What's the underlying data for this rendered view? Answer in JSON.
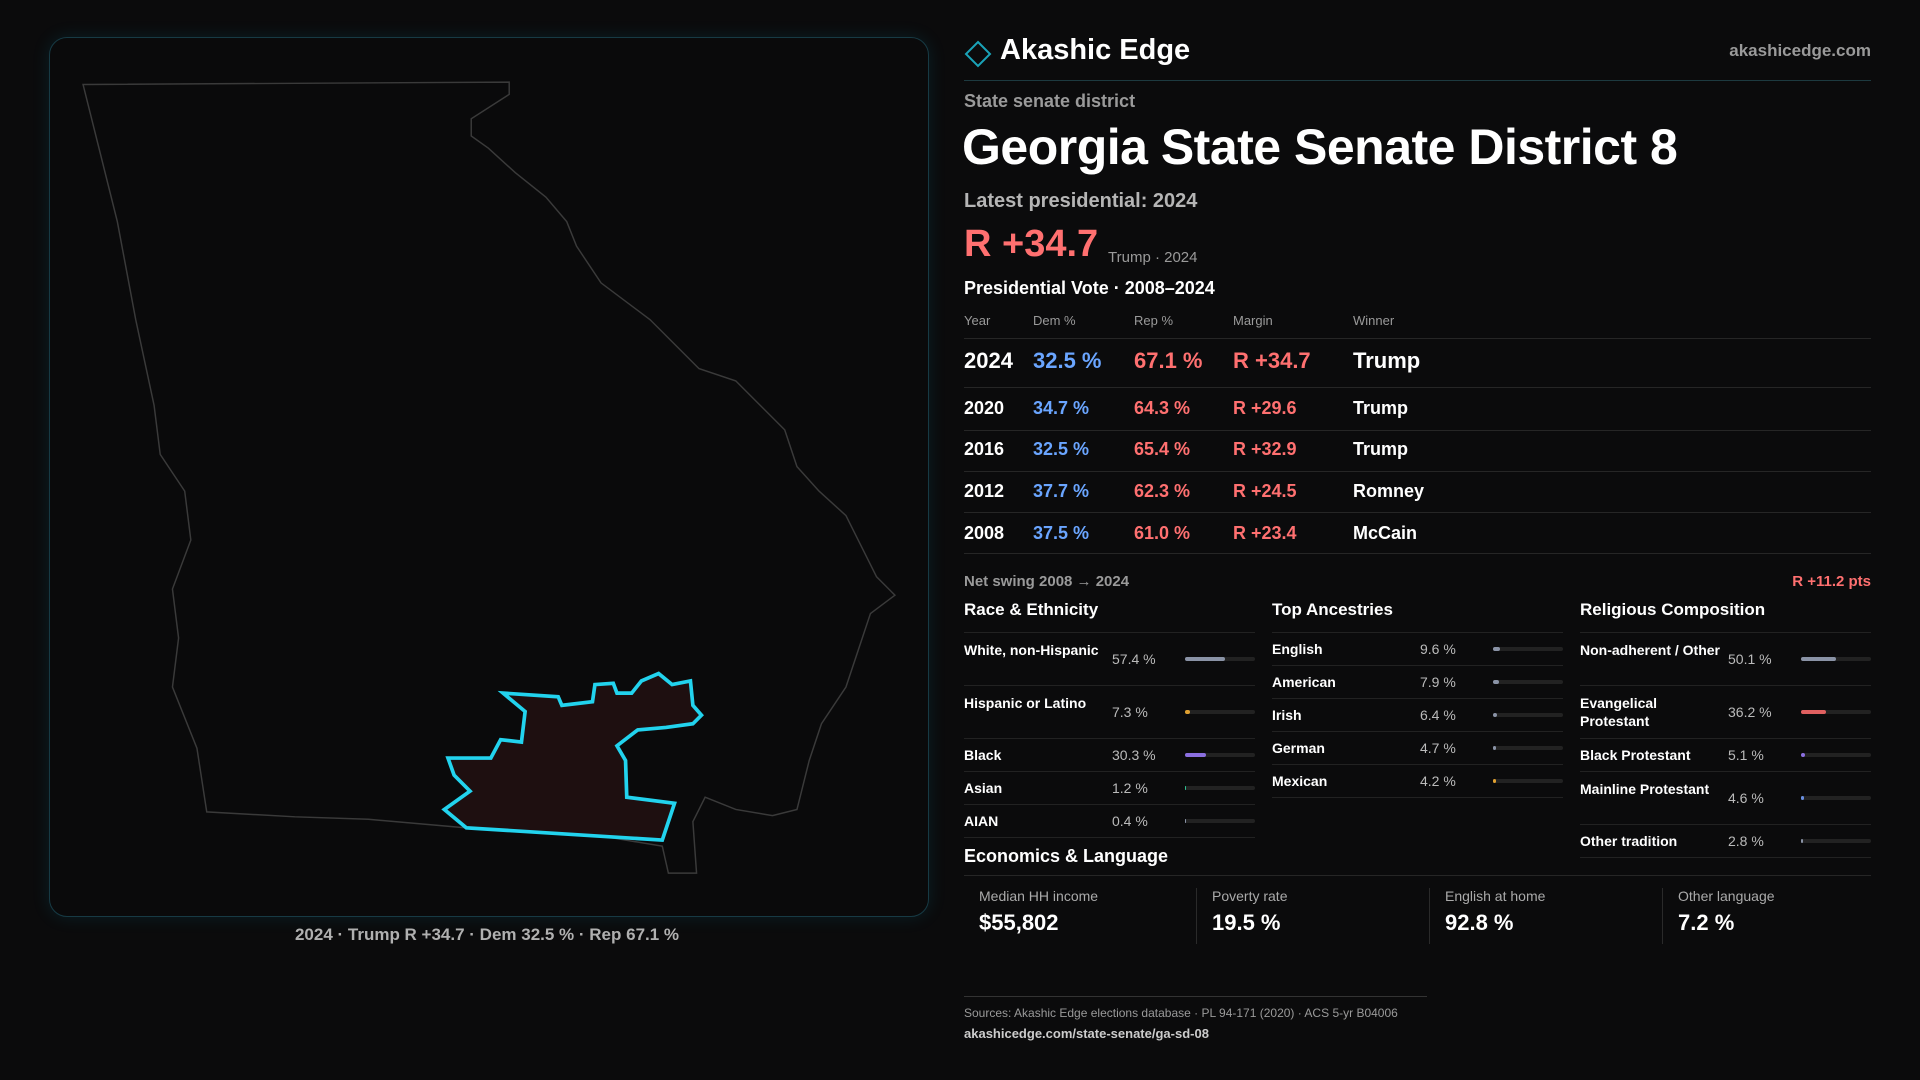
{
  "brand": {
    "name": "Akashic Edge",
    "site": "akashicedge.com"
  },
  "header": {
    "kicker": "State senate district",
    "title": "Georgia State Senate District 8",
    "latest": "Latest presidential: 2024",
    "margin": "R +34.7",
    "margin_note": "Trump · 2024"
  },
  "map": {
    "caption": "2024 · Trump R +34.7 · Dem 32.5 % · Rep 67.1 %"
  },
  "table": {
    "title": "Presidential Vote · 2008–2024",
    "columns": [
      "Year",
      "Dem %",
      "Rep %",
      "Margin",
      "Winner"
    ],
    "rows": [
      [
        "2024",
        "32.5 %",
        "67.1 %",
        "R +34.7",
        "Trump"
      ],
      [
        "2020",
        "34.7 %",
        "64.3 %",
        "R +29.6",
        "Trump"
      ],
      [
        "2016",
        "32.5 %",
        "65.4 %",
        "R +32.9",
        "Trump"
      ],
      [
        "2012",
        "37.7 %",
        "62.3 %",
        "R +24.5",
        "Romney"
      ],
      [
        "2008",
        "37.5 %",
        "61.0 %",
        "R +23.4",
        "McCain"
      ]
    ]
  },
  "swing": {
    "label": "Net swing 2008 → 2024",
    "value": "R +11.2 pts"
  },
  "panels": [
    {
      "title": "Race & Ethnicity",
      "items": [
        {
          "name": "White, non-Hispanic",
          "value": 57.4,
          "value_label": "57.4 %",
          "color": "#8a93a6"
        },
        {
          "name": "Hispanic or Latino",
          "value": 7.3,
          "value_label": "7.3 %",
          "color": "#e0a030"
        },
        {
          "name": "Black",
          "value": 30.3,
          "value_label": "30.3 %",
          "color": "#8b6fe0"
        },
        {
          "name": "Asian",
          "value": 1.2,
          "value_label": "1.2 %",
          "color": "#2fbf8f"
        },
        {
          "name": "AIAN",
          "value": 0.4,
          "value_label": "0.4 %",
          "color": "#8a93a6"
        }
      ]
    },
    {
      "title": "Top Ancestries",
      "items": [
        {
          "name": "English",
          "value": 9.6,
          "value_label": "9.6 %",
          "color": "#8a93a6"
        },
        {
          "name": "American",
          "value": 7.9,
          "value_label": "7.9 %",
          "color": "#8a93a6"
        },
        {
          "name": "Irish",
          "value": 6.4,
          "value_label": "6.4 %",
          "color": "#8a93a6"
        },
        {
          "name": "German",
          "value": 4.7,
          "value_label": "4.7 %",
          "color": "#8a93a6"
        },
        {
          "name": "Mexican",
          "value": 4.2,
          "value_label": "4.2 %",
          "color": "#e0a030"
        }
      ]
    },
    {
      "title": "Religious Composition",
      "items": [
        {
          "name": "Non-adherent / Other",
          "value": 50.1,
          "value_label": "50.1 %",
          "color": "#8a93a6"
        },
        {
          "name": "Evangelical Protestant",
          "value": 36.2,
          "value_label": "36.2 %",
          "color": "#e06060"
        },
        {
          "name": "Black Protestant",
          "value": 5.1,
          "value_label": "5.1 %",
          "color": "#8b6fe0"
        },
        {
          "name": "Mainline Protestant",
          "value": 4.6,
          "value_label": "4.6 %",
          "color": "#6a8fe0"
        },
        {
          "name": "Other tradition",
          "value": 2.8,
          "value_label": "2.8 %",
          "color": "#8a93a6"
        }
      ]
    }
  ],
  "economics": {
    "title": "Economics & Language",
    "stats": [
      {
        "label": "Median HH income",
        "value": "$55,802"
      },
      {
        "label": "Poverty rate",
        "value": "19.5 %"
      },
      {
        "label": "English at home",
        "value": "92.8 %"
      },
      {
        "label": "Other language",
        "value": "7.2 %"
      }
    ]
  },
  "footer": {
    "sources": "Sources: Akashic Edge elections database · PL 94-171 (2020) · ACS 5-yr B04006",
    "url": "akashicedge.com/state-senate/ga-sd-08"
  }
}
